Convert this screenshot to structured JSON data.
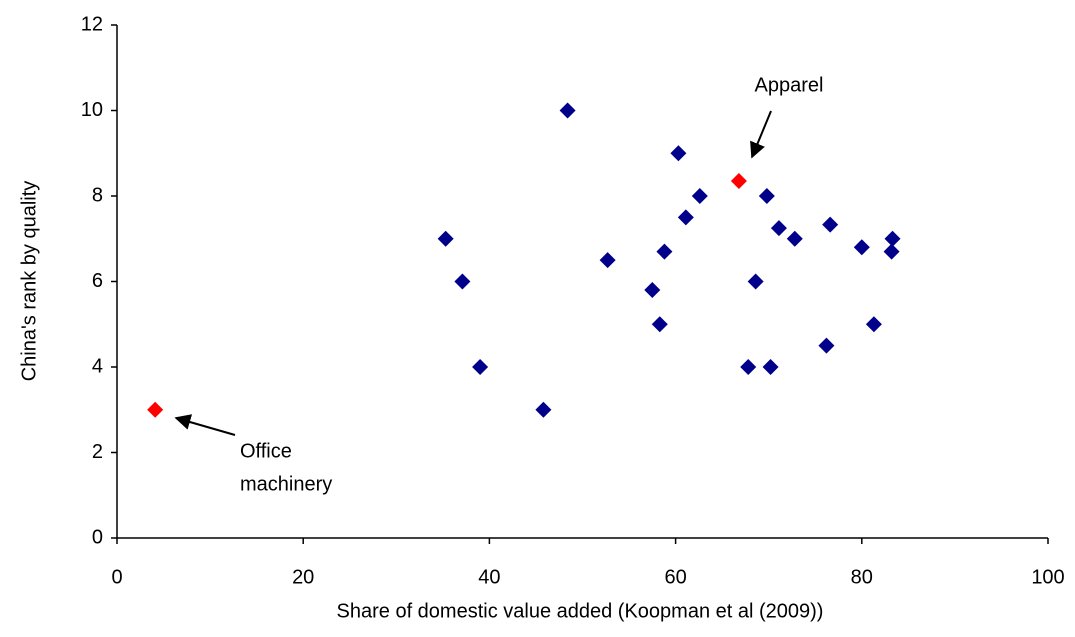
{
  "chart_data": {
    "type": "scatter",
    "xlabel": "Share of domestic value added (Koopman et al (2009))",
    "ylabel": "China's rank by quality",
    "xlim": [
      0,
      100
    ],
    "xticks": [
      0,
      20,
      40,
      60,
      80,
      100
    ],
    "ylim": [
      0,
      12
    ],
    "yticks": [
      0,
      2,
      4,
      6,
      8,
      10,
      12
    ],
    "grid": false,
    "series": [
      {
        "color": "#00008b",
        "x": [
          35.3,
          37.1,
          39.0,
          45.8,
          48.4,
          52.7,
          57.5,
          58.3,
          58.8,
          60.3,
          61.1,
          62.6,
          69.8,
          67.8,
          68.6,
          70.2,
          71.1,
          72.8,
          76.2,
          76.6,
          80.0,
          81.3,
          83.3,
          83.2
        ],
        "values": [
          7,
          6,
          4,
          3,
          10,
          6.5,
          5.8,
          5,
          6.7,
          9,
          7.5,
          8,
          8,
          4,
          6,
          4,
          7.25,
          7,
          4.5,
          7.33,
          6.8,
          5,
          7,
          6.7
        ]
      },
      {
        "color": "#ff0000",
        "x": [
          4.1,
          66.8
        ],
        "values": [
          3,
          8.35
        ]
      }
    ],
    "annotations": [
      {
        "lines": [
          "Office",
          "machinery"
        ]
      },
      {
        "lines": [
          "Apparel"
        ]
      }
    ]
  }
}
